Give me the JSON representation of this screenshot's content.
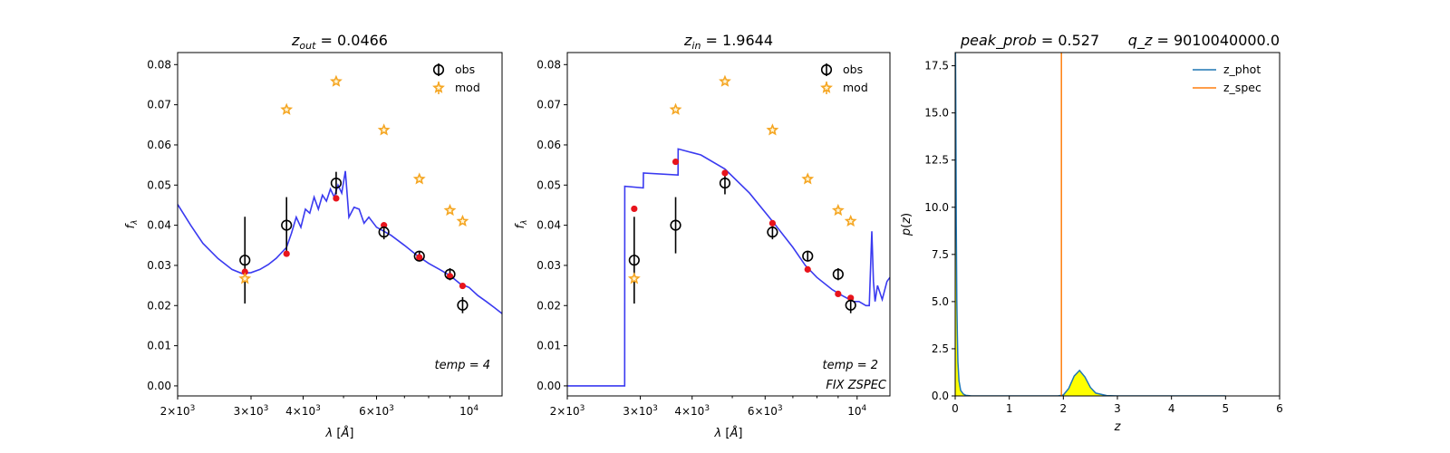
{
  "chart_data": [
    {
      "type": "scatter",
      "title": "z_out = 0.0466",
      "title_parts": {
        "var": "z",
        "sub": "out",
        "eq": " = 0.0466"
      },
      "xlabel": "λ [Å]",
      "ylabel": "f_λ",
      "x_scale": "log",
      "xlim": [
        2000,
        12000
      ],
      "ylim": [
        -0.0025,
        0.083
      ],
      "x_ticks": [
        {
          "v": 2000,
          "m": "2",
          "e": "3"
        },
        {
          "v": 3000,
          "m": "3",
          "e": "3"
        },
        {
          "v": 4000,
          "m": "4",
          "e": "3"
        },
        {
          "v": 6000,
          "m": "6",
          "e": "3"
        },
        {
          "v": 10000,
          "m": "",
          "e": "4"
        }
      ],
      "y_ticks": [
        "0.00",
        "0.01",
        "0.02",
        "0.03",
        "0.04",
        "0.05",
        "0.06",
        "0.07",
        "0.08"
      ],
      "legend": {
        "position": "top-right",
        "entries": [
          "obs",
          "mod"
        ]
      },
      "annotation": [
        "temp = 4"
      ],
      "series": [
        {
          "name": "obs",
          "marker": "open-circle-errorbar",
          "color": "#000000",
          "x": [
            2900,
            3650,
            4800,
            6250,
            7600,
            9000,
            9650
          ],
          "y": [
            0.0313,
            0.04,
            0.0505,
            0.0383,
            0.0323,
            0.0278,
            0.0201
          ],
          "yerr": [
            0.0108,
            0.007,
            0.0028,
            0.0018,
            0.0013,
            0.0015,
            0.002
          ]
        },
        {
          "name": "mod",
          "marker": "star",
          "color": "#f5a623",
          "x": [
            2900,
            3650,
            4800,
            6250,
            7600,
            9000,
            9650
          ],
          "y": [
            0.0267,
            0.0688,
            0.0758,
            0.0637,
            0.0515,
            0.0437,
            0.041
          ]
        },
        {
          "name": "",
          "marker": "dot",
          "color": "#e8141c",
          "x": [
            2900,
            3650,
            4800,
            6250,
            7600,
            9000,
            9650
          ],
          "y": [
            0.0284,
            0.0329,
            0.0467,
            0.04,
            0.032,
            0.0273,
            0.0249
          ]
        },
        {
          "name": "",
          "type": "line",
          "color": "#3a3af0",
          "x": [
            2000,
            2150,
            2300,
            2500,
            2700,
            2850,
            3000,
            3150,
            3300,
            3450,
            3650,
            3750,
            3850,
            3950,
            4050,
            4150,
            4250,
            4350,
            4450,
            4550,
            4650,
            4750,
            4850,
            4950,
            5050,
            5150,
            5300,
            5450,
            5600,
            5750,
            6000,
            6250,
            6500,
            7000,
            7500,
            8000,
            8500,
            9000,
            9500,
            10000,
            10500,
            11000,
            11500,
            12000
          ],
          "y": [
            0.0452,
            0.04,
            0.0355,
            0.0317,
            0.029,
            0.028,
            0.0282,
            0.029,
            0.0302,
            0.0318,
            0.0345,
            0.038,
            0.042,
            0.0395,
            0.044,
            0.043,
            0.047,
            0.044,
            0.0475,
            0.046,
            0.049,
            0.047,
            0.05,
            0.048,
            0.0535,
            0.042,
            0.0445,
            0.044,
            0.0405,
            0.042,
            0.0395,
            0.0385,
            0.0375,
            0.035,
            0.0325,
            0.0305,
            0.029,
            0.0275,
            0.0255,
            0.0245,
            0.0225,
            0.021,
            0.0195,
            0.018
          ]
        }
      ]
    },
    {
      "type": "scatter",
      "title": "z_in = 1.9644",
      "title_parts": {
        "var": "z",
        "sub": "in",
        "eq": " = 1.9644"
      },
      "xlabel": "λ [Å]",
      "ylabel": "f_λ",
      "x_scale": "log",
      "xlim": [
        2000,
        12000
      ],
      "ylim": [
        -0.0025,
        0.083
      ],
      "x_ticks": [
        {
          "v": 2000,
          "m": "2",
          "e": "3"
        },
        {
          "v": 3000,
          "m": "3",
          "e": "3"
        },
        {
          "v": 4000,
          "m": "4",
          "e": "3"
        },
        {
          "v": 6000,
          "m": "6",
          "e": "3"
        },
        {
          "v": 10000,
          "m": "",
          "e": "4"
        }
      ],
      "y_ticks": [
        "0.00",
        "0.01",
        "0.02",
        "0.03",
        "0.04",
        "0.05",
        "0.06",
        "0.07",
        "0.08"
      ],
      "legend": {
        "position": "top-right",
        "entries": [
          "obs",
          "mod"
        ]
      },
      "annotation": [
        "temp = 2",
        "FIX ZSPEC"
      ],
      "series": [
        {
          "name": "obs",
          "marker": "open-circle-errorbar",
          "color": "#000000",
          "x": [
            2900,
            3650,
            4800,
            6250,
            7600,
            9000,
            9650
          ],
          "y": [
            0.0313,
            0.04,
            0.0505,
            0.0383,
            0.0323,
            0.0278,
            0.0201
          ],
          "yerr": [
            0.0108,
            0.007,
            0.0028,
            0.0018,
            0.0013,
            0.0015,
            0.002
          ]
        },
        {
          "name": "mod",
          "marker": "star",
          "color": "#f5a623",
          "x": [
            2900,
            3650,
            4800,
            6250,
            7600,
            9000,
            9650
          ],
          "y": [
            0.0267,
            0.0688,
            0.0758,
            0.0637,
            0.0515,
            0.0437,
            0.041
          ]
        },
        {
          "name": "",
          "marker": "dot",
          "color": "#e8141c",
          "x": [
            2900,
            3650,
            4800,
            6250,
            7600,
            9000,
            9650
          ],
          "y": [
            0.0441,
            0.0558,
            0.053,
            0.0405,
            0.029,
            0.0229,
            0.0219
          ]
        },
        {
          "name": "",
          "type": "line",
          "color": "#3a3af0",
          "x": [
            2000,
            2750,
            2752,
            3050,
            3052,
            3700,
            3702,
            4200,
            4800,
            5500,
            6250,
            7000,
            7500,
            8000,
            8700,
            9200,
            9800,
            10100,
            10500,
            10700,
            10850,
            10950,
            11050,
            11200,
            11500,
            11800,
            12000
          ],
          "y": [
            0.0,
            0.0,
            0.0497,
            0.0493,
            0.053,
            0.0525,
            0.059,
            0.0575,
            0.054,
            0.048,
            0.041,
            0.0345,
            0.03,
            0.027,
            0.024,
            0.0225,
            0.021,
            0.021,
            0.02,
            0.02,
            0.0385,
            0.026,
            0.021,
            0.025,
            0.0215,
            0.026,
            0.027
          ]
        }
      ]
    },
    {
      "type": "line",
      "title_parts": {
        "left": "peak_prob = 0.527",
        "right": "q_z = 9010040000.0"
      },
      "xlabel": "z",
      "ylabel": "p(z)",
      "xlim": [
        0,
        6
      ],
      "ylim": [
        0,
        18.2
      ],
      "x_ticks": [
        "0",
        "1",
        "2",
        "3",
        "4",
        "5",
        "6"
      ],
      "y_ticks": [
        "0.0",
        "2.5",
        "5.0",
        "7.5",
        "10.0",
        "12.5",
        "15.0",
        "17.5"
      ],
      "legend": {
        "position": "top-right",
        "entries": [
          "z_phot",
          "z_spec"
        ]
      },
      "series": [
        {
          "name": "z_phot",
          "color": "#1f77b4",
          "x": [
            0.0,
            0.005,
            0.01,
            0.02,
            0.03,
            0.04,
            0.05,
            0.07,
            0.1,
            0.15,
            0.2,
            0.3,
            0.5,
            1.0,
            1.5,
            1.9,
            2.0,
            2.1,
            2.2,
            2.3,
            2.4,
            2.5,
            2.6,
            2.8,
            3.0,
            4.0,
            5.0
          ],
          "y": [
            18.5,
            18.5,
            16.0,
            9.0,
            5.0,
            3.2,
            1.8,
            0.8,
            0.3,
            0.1,
            0.03,
            0.0,
            0.0,
            0.0,
            0.0,
            0.0,
            0.05,
            0.4,
            1.05,
            1.35,
            1.0,
            0.45,
            0.15,
            0.02,
            0.0,
            0.0,
            0.0
          ]
        },
        {
          "name": "z_spec",
          "type": "vline",
          "color": "#ff7f0e",
          "x": 1.9644
        }
      ],
      "fill": {
        "color": "#ffff00"
      }
    }
  ]
}
